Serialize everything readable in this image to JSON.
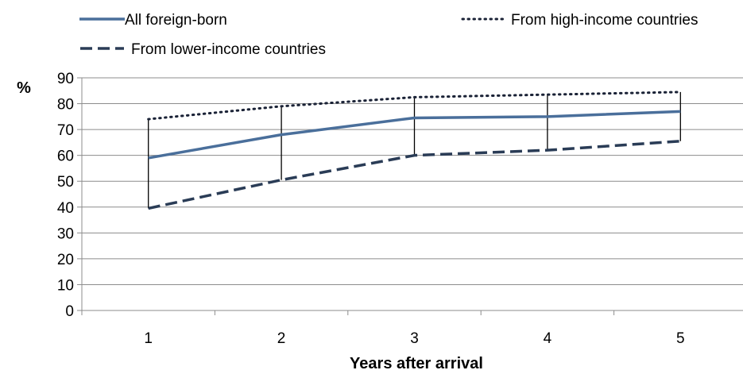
{
  "chart_data": {
    "type": "line",
    "title": "",
    "xlabel": "Years after arrival",
    "ylabel": "%",
    "categories": [
      "1",
      "2",
      "3",
      "4",
      "5"
    ],
    "ylim": [
      0,
      90
    ],
    "yticks": [
      "0",
      "10",
      "20",
      "30",
      "40",
      "50",
      "60",
      "70",
      "80",
      "90"
    ],
    "grid": true,
    "legend_position": "top",
    "high_low_lines": true,
    "series": [
      {
        "name": "All foreign-born",
        "values": [
          59,
          68,
          74.5,
          75,
          77
        ],
        "color": "#4a6f9b",
        "style": "solid"
      },
      {
        "name": "From high-income countries",
        "values": [
          74,
          79,
          82.5,
          83.5,
          84.5
        ],
        "color": "#1a2236",
        "style": "dotted"
      },
      {
        "name": "From lower-income countries",
        "values": [
          39.5,
          50.5,
          60,
          62,
          65.5
        ],
        "color": "#2a3c56",
        "style": "dashed"
      }
    ]
  }
}
